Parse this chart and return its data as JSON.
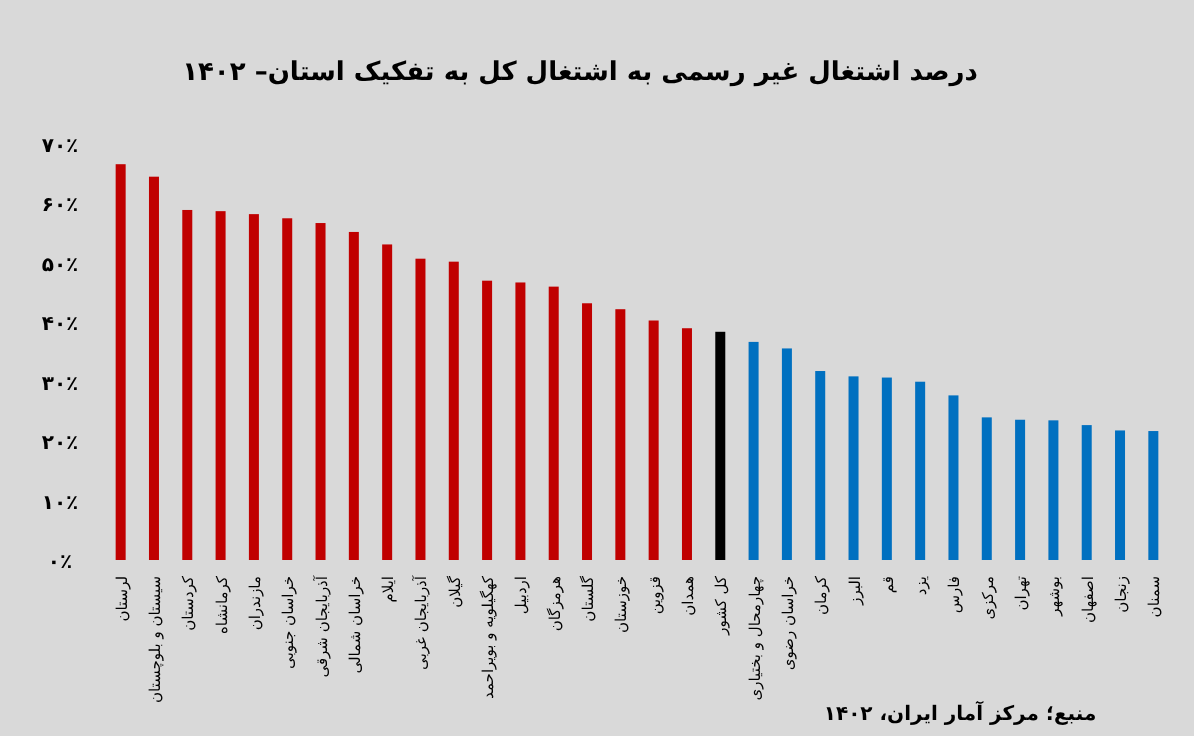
{
  "chart_data": {
    "type": "bar",
    "title": "درصد اشتغال غیر رسمی به اشتغال کل به تفکیک استان– ۱۴۰۲",
    "categories": [
      "لرستان",
      "سیستان و بلوچستان",
      "کردستان",
      "کرمانشاه",
      "مازندران",
      "خراسان جنوبی",
      "آذربایجان شرقی",
      "خراسان شمالی",
      "ایلام",
      "آذربایجان غربی",
      "گیلان",
      "کهگیلویه و بویراحمد",
      "اردبیل",
      "هرمزگان",
      "گلستان",
      "خوزستان",
      "قزوین",
      "همدان",
      "کل کشور",
      "چهارمحال و بختیاری",
      "خراسان رضوی",
      "کرمان",
      "البرز",
      "قم",
      "یزد",
      "فارس",
      "مرکزی",
      "تهران",
      "بوشهر",
      "اصفهان",
      "زنجان",
      "سمنان"
    ],
    "values": [
      66.6,
      64.5,
      58.9,
      58.7,
      58.2,
      57.5,
      56.7,
      55.2,
      53.1,
      50.7,
      50.2,
      47.0,
      46.7,
      46.0,
      43.2,
      42.2,
      40.3,
      39.0,
      38.4,
      36.7,
      35.6,
      31.8,
      30.9,
      30.7,
      30.0,
      27.7,
      24.0,
      23.6,
      23.5,
      22.7,
      21.8,
      21.7
    ],
    "colors": [
      "#c00000",
      "#c00000",
      "#c00000",
      "#c00000",
      "#c00000",
      "#c00000",
      "#c00000",
      "#c00000",
      "#c00000",
      "#c00000",
      "#c00000",
      "#c00000",
      "#c00000",
      "#c00000",
      "#c00000",
      "#c00000",
      "#c00000",
      "#c00000",
      "#000000",
      "#0070c0",
      "#0070c0",
      "#0070c0",
      "#0070c0",
      "#0070c0",
      "#0070c0",
      "#0070c0",
      "#0070c0",
      "#0070c0",
      "#0070c0",
      "#0070c0",
      "#0070c0",
      "#0070c0"
    ],
    "ylim": [
      0,
      70
    ],
    "yticks": [
      {
        "value": 0,
        "label": "۰٪"
      },
      {
        "value": 10,
        "label": "۱۰٪"
      },
      {
        "value": 20,
        "label": "۲۰٪"
      },
      {
        "value": 30,
        "label": "۳۰٪"
      },
      {
        "value": 40,
        "label": "۴۰٪"
      },
      {
        "value": 50,
        "label": "۵۰٪"
      },
      {
        "value": 60,
        "label": "۶۰٪"
      },
      {
        "value": 70,
        "label": "۷۰٪"
      }
    ],
    "annotations": [
      "منبع؛ مرکز آمار ایران، ۱۴۰۲"
    ],
    "grid": false
  }
}
